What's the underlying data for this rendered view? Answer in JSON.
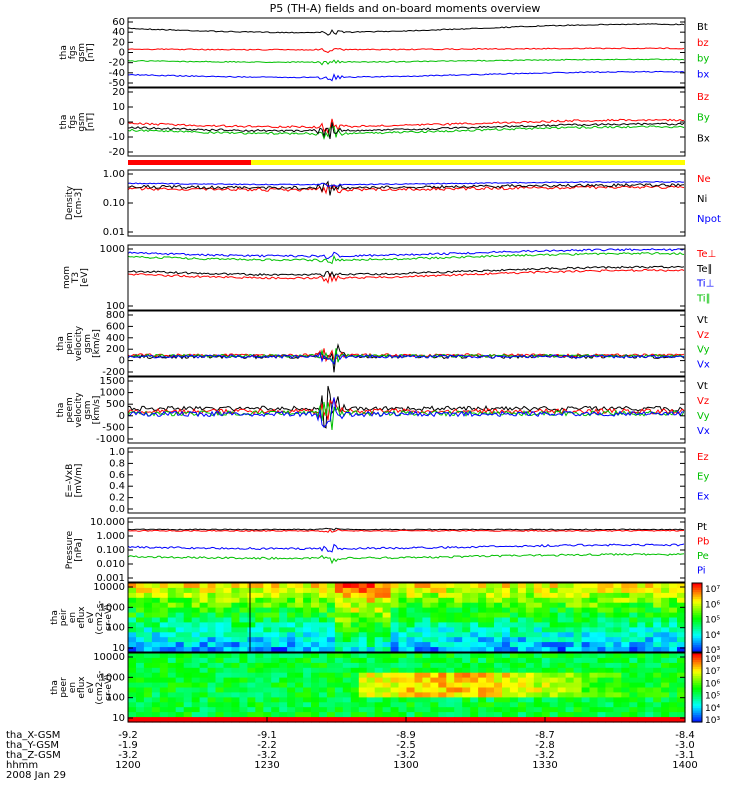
{
  "title": "P5 (TH-A) fields and on-board moments overview",
  "chart_data": [
    {
      "type": "line",
      "ylabel_lines": [
        "tha",
        "fgs",
        "gsm",
        "[nT]"
      ],
      "y_ticks": [
        "60",
        "40",
        "20",
        "0",
        "-20",
        "-40",
        "-50"
      ],
      "ylim": [
        -60,
        65
      ],
      "legend": [
        {
          "label": "Bt",
          "color": "#000000"
        },
        {
          "label": "bz",
          "color": "#ff0000"
        },
        {
          "label": "by",
          "color": "#00c000"
        },
        {
          "label": "bx",
          "color": "#0000ff"
        }
      ]
    },
    {
      "type": "line",
      "ylabel_lines": [
        "tha",
        "fgs",
        "gsm",
        "[nT]"
      ],
      "y_ticks": [
        "20",
        "10",
        "0",
        "-10",
        "-20"
      ],
      "ylim": [
        -25,
        30
      ],
      "legend": [
        {
          "label": "Bz",
          "color": "#ff0000"
        },
        {
          "label": "By",
          "color": "#00c000"
        },
        {
          "label": "Bx",
          "color": "#000000"
        }
      ]
    },
    {
      "type": "line",
      "ylabel_lines": [
        "Density",
        "[cm-3]"
      ],
      "y_ticks": [
        "1.00",
        "0.10",
        "0.01"
      ],
      "legend": [
        {
          "label": "Ne",
          "color": "#ff0000"
        },
        {
          "label": "Ni",
          "color": "#000000"
        },
        {
          "label": "Npot",
          "color": "#0000ff"
        }
      ]
    },
    {
      "type": "line",
      "ylabel_lines": [
        "mom",
        "T3",
        "[eV]"
      ],
      "y_ticks": [
        "1000",
        "100"
      ],
      "legend": [
        {
          "label": "Te⊥",
          "color": "#ff0000"
        },
        {
          "label": "Te∥",
          "color": "#000000"
        },
        {
          "label": "Ti⊥",
          "color": "#0000ff"
        },
        {
          "label": "Ti∥",
          "color": "#00c000"
        }
      ]
    },
    {
      "type": "line",
      "ylabel_lines": [
        "tha",
        "peim",
        "velocity",
        "gsm",
        "[km/s]"
      ],
      "y_ticks": [
        "800",
        "600",
        "400",
        "200",
        "0",
        "-200"
      ],
      "ylim": [
        -250,
        850
      ],
      "legend": [
        {
          "label": "Vt",
          "color": "#000000"
        },
        {
          "label": "Vz",
          "color": "#ff0000"
        },
        {
          "label": "Vy",
          "color": "#00c000"
        },
        {
          "label": "Vx",
          "color": "#0000ff"
        }
      ]
    },
    {
      "type": "line",
      "ylabel_lines": [
        "tha",
        "peem",
        "velocity",
        "gsm",
        "[km/s]"
      ],
      "y_ticks": [
        "1500",
        "1000",
        "500",
        "0",
        "-500",
        "-1000"
      ],
      "ylim": [
        -1100,
        1500
      ],
      "legend": [
        {
          "label": "Vt",
          "color": "#000000"
        },
        {
          "label": "Vz",
          "color": "#ff0000"
        },
        {
          "label": "Vy",
          "color": "#00c000"
        },
        {
          "label": "Vx",
          "color": "#0000ff"
        }
      ]
    },
    {
      "type": "line",
      "ylabel_lines": [
        "E=-VxB",
        "[mV/m]"
      ],
      "y_ticks": [
        "1.0",
        "0.8",
        "0.6",
        "0.4",
        "0.2",
        "0.0"
      ],
      "ylim": [
        0,
        1
      ],
      "legend": [
        {
          "label": "Ez",
          "color": "#ff0000"
        },
        {
          "label": "Ey",
          "color": "#00c000"
        },
        {
          "label": "Ex",
          "color": "#0000ff"
        }
      ]
    },
    {
      "type": "line",
      "ylabel_lines": [
        "Pressure",
        "[nPa]"
      ],
      "y_ticks": [
        "10.000",
        "1.000",
        "0.100",
        "0.010",
        "0.001"
      ],
      "legend": [
        {
          "label": "Pt",
          "color": "#000000"
        },
        {
          "label": "Pb",
          "color": "#ff0000"
        },
        {
          "label": "Pe",
          "color": "#00c000"
        },
        {
          "label": "Pi",
          "color": "#0000ff"
        }
      ]
    },
    {
      "type": "heatmap",
      "ylabel_lines": [
        "tha",
        "peir",
        "en",
        "eflux",
        "eV",
        "(cm2-s-",
        "sr-eV)"
      ],
      "y_ticks": [
        "10000",
        "1000",
        "100",
        "10"
      ],
      "colorbar_ticks": [
        "10⁷",
        "10⁶",
        "10⁵",
        "10⁴",
        "10³"
      ]
    },
    {
      "type": "heatmap",
      "ylabel_lines": [
        "tha",
        "peer",
        "en",
        "eflux",
        "eV",
        "(cm2-s-",
        "sr-eV)"
      ],
      "y_ticks": [
        "10000",
        "1000",
        "100",
        "10"
      ],
      "colorbar_ticks": [
        "10⁸",
        "10⁷",
        "10⁶",
        "10⁵",
        "10⁴",
        "10³"
      ]
    }
  ],
  "x_axis": {
    "rows": [
      {
        "label": "tha_X-GSM",
        "values": [
          "-9.2",
          "-9.1",
          "-8.9",
          "-8.7",
          "-8.4"
        ]
      },
      {
        "label": "tha_Y-GSM",
        "values": [
          "-1.9",
          "-2.2",
          "-2.5",
          "-2.8",
          "-3.0"
        ]
      },
      {
        "label": "tha_Z-GSM",
        "values": [
          "-3.2",
          "-3.2",
          "-3.2",
          "-3.2",
          "-3.1"
        ]
      },
      {
        "label": "hhmm",
        "values": [
          "1200",
          "1230",
          "1300",
          "1330",
          "1400"
        ]
      }
    ],
    "date": "2008 Jan 29"
  }
}
